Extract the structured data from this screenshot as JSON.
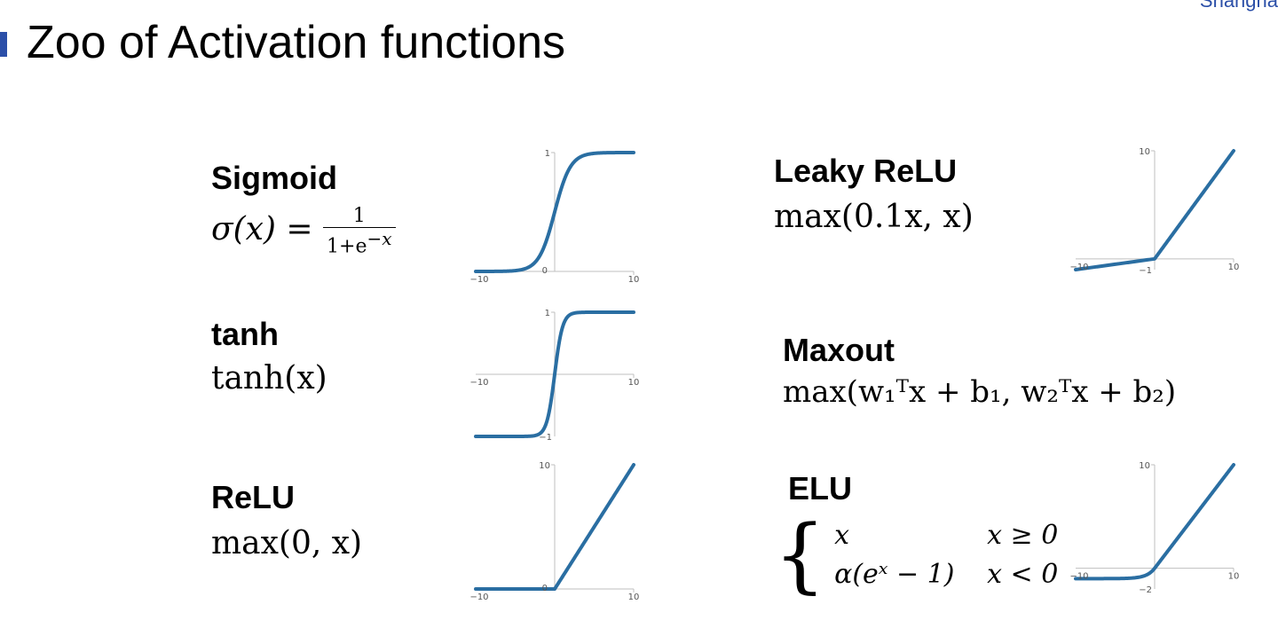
{
  "corner_text": "Shangha",
  "title": "Zoo of Activation functions",
  "functions": {
    "sigmoid": {
      "name": "Sigmoid",
      "lhs": "σ(x) =",
      "num": "1",
      "den": "1+e",
      "den_sup": "−x"
    },
    "tanh": {
      "name": "tanh",
      "formula": "tanh(x)"
    },
    "relu": {
      "name": "ReLU",
      "formula": "max(0, x)"
    },
    "leaky_relu": {
      "name": "Leaky ReLU",
      "formula": "max(0.1x, x)"
    },
    "maxout": {
      "name": "Maxout",
      "formula": "max(w₁ᵀx + b₁, w₂ᵀx + b₂)"
    },
    "elu": {
      "name": "ELU",
      "case1_expr": "x",
      "case1_cond": "x ≥ 0",
      "case2_expr": "α(eˣ − 1)",
      "case2_cond": "x < 0"
    }
  },
  "chart_data": [
    {
      "type": "line",
      "name_ref": "sigmoid",
      "xlim": [
        -10,
        10
      ],
      "ylim": [
        0,
        1
      ],
      "x_ticks": [
        "−10",
        "10"
      ],
      "y_ticks": [
        "0",
        "1"
      ],
      "x_axis_at": 0,
      "y_axis_at": 0,
      "func": "sigmoid"
    },
    {
      "type": "line",
      "name_ref": "tanh",
      "xlim": [
        -10,
        10
      ],
      "ylim": [
        -1,
        1
      ],
      "x_ticks": [
        "−10",
        "10"
      ],
      "y_ticks": [
        "−1",
        "1"
      ],
      "x_axis_at": 0,
      "y_axis_at": 0,
      "func": "tanh"
    },
    {
      "type": "line",
      "name_ref": "relu",
      "xlim": [
        -10,
        10
      ],
      "ylim": [
        0,
        10
      ],
      "x_ticks": [
        "−10",
        "10"
      ],
      "y_ticks": [
        "0",
        "10"
      ],
      "x_axis_at": 0,
      "y_axis_at": 0,
      "func": "relu"
    },
    {
      "type": "line",
      "name_ref": "leaky_relu",
      "xlim": [
        -10,
        10
      ],
      "ylim": [
        -1,
        10
      ],
      "x_ticks": [
        "−10",
        "10"
      ],
      "y_ticks": [
        "−1",
        "10"
      ],
      "x_axis_at": 0,
      "y_axis_at": 0,
      "func": "leaky"
    },
    {
      "type": "line",
      "name_ref": "elu",
      "xlim": [
        -10,
        10
      ],
      "ylim": [
        -2,
        10
      ],
      "x_ticks": [
        "−10",
        "10"
      ],
      "y_ticks": [
        "−2",
        "10"
      ],
      "x_axis_at": 0,
      "y_axis_at": 0,
      "func": "elu"
    }
  ]
}
